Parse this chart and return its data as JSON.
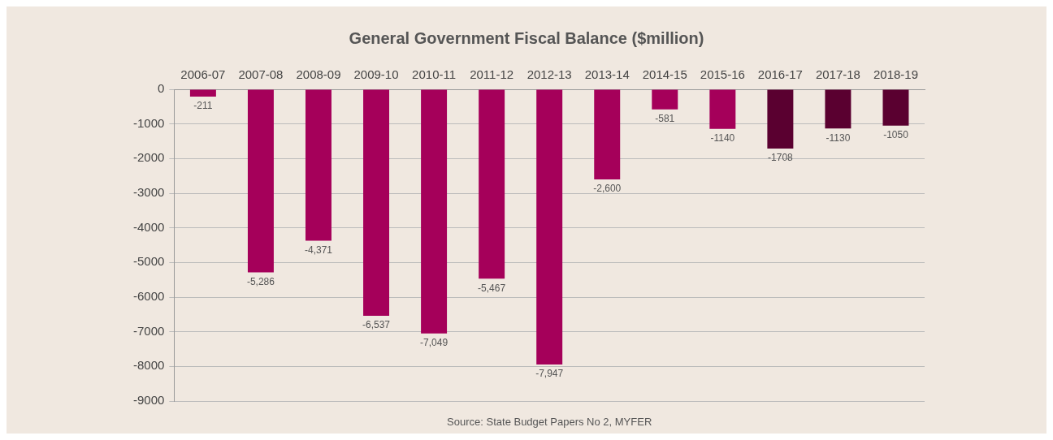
{
  "chart_data": {
    "type": "bar",
    "title": "General Government Fiscal Balance ($million)",
    "categories": [
      "2006-07",
      "2007-08",
      "2008-09",
      "2009-10",
      "2010-11",
      "2011-12",
      "2012-13",
      "2013-14",
      "2014-15",
      "2015-16",
      "2016-17",
      "2017-18",
      "2018-19"
    ],
    "values": [
      -211,
      -5286,
      -4371,
      -6537,
      -7049,
      -5467,
      -7947,
      -2600,
      -581,
      -1140,
      -1708,
      -1130,
      -1050
    ],
    "value_labels": [
      "-211",
      "-5,286",
      "-4,371",
      "-6,537",
      "-7,049",
      "-5,467",
      "-7,947",
      "-2,600",
      "-581",
      "-1140",
      "-1708",
      "-1130",
      "-1050"
    ],
    "colors": [
      "#a5005a",
      "#a5005a",
      "#a5005a",
      "#a5005a",
      "#a5005a",
      "#a5005a",
      "#a5005a",
      "#a5005a",
      "#a5005a",
      "#a5005a",
      "#5a0030",
      "#5a0030",
      "#5a0030"
    ],
    "ylim": [
      -9000,
      0
    ],
    "yticks": [
      -9000,
      -8000,
      -7000,
      -6000,
      -5000,
      -4000,
      -3000,
      -2000,
      -1000,
      0
    ],
    "grid": "y",
    "annotations": [
      "Source: State Budget Papers No 2, MYFER"
    ]
  }
}
